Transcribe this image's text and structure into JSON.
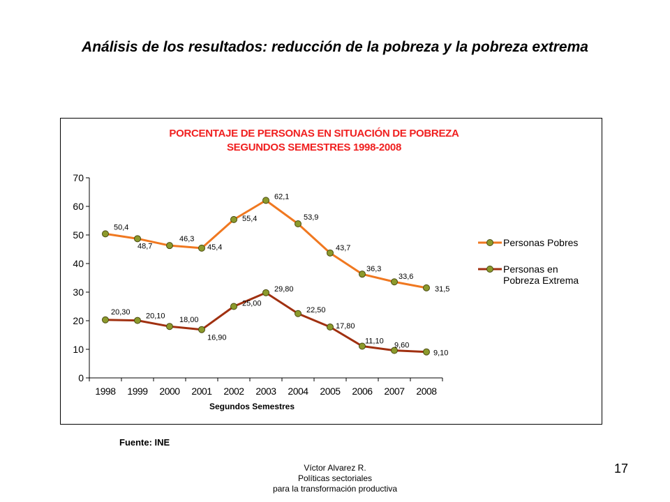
{
  "slide": {
    "title": "Análisis de los resultados: reducción de la pobreza y la pobreza extrema",
    "source": "Fuente: INE",
    "footer": [
      "Víctor Alvarez R.",
      "Políticas sectoriales",
      "para la transformación productiva"
    ],
    "page_number": "17"
  },
  "chart_data": {
    "type": "line",
    "title": [
      "PORCENTAJE DE PERSONAS EN SITUACIÓN DE POBREZA",
      "SEGUNDOS SEMESTRES 1998-2008"
    ],
    "xlabel": "Segundos Semestres",
    "ylabel": "",
    "ylim": [
      0,
      70
    ],
    "yticks": [
      "0",
      "10",
      "20",
      "30",
      "40",
      "50",
      "60",
      "70"
    ],
    "categories": [
      "1998",
      "1999",
      "2000",
      "2001",
      "2002",
      "2003",
      "2004",
      "2005",
      "2006",
      "2007",
      "2008"
    ],
    "grid": false,
    "legend_position": "right",
    "series": [
      {
        "name": "Personas Pobres",
        "legend_lines": [
          "Personas Pobres"
        ],
        "color": "#f07820",
        "values": [
          50.4,
          48.7,
          46.3,
          45.4,
          55.4,
          62.1,
          53.9,
          43.7,
          36.3,
          33.6,
          31.5
        ],
        "labels": [
          "50,4",
          "48,7",
          "46,3",
          "45,4",
          "55,4",
          "62,1",
          "53,9",
          "43,7",
          "36,3",
          "33,6",
          "31,5"
        ]
      },
      {
        "name": "Personas en Pobreza Extrema",
        "legend_lines": [
          "Personas en",
          "Pobreza Extrema"
        ],
        "color": "#a03010",
        "values": [
          20.3,
          20.1,
          18.0,
          16.9,
          25.0,
          29.8,
          22.5,
          17.8,
          11.1,
          9.6,
          9.1
        ],
        "labels": [
          "20,30",
          "20,10",
          "18,00",
          "16,90",
          "25,00",
          "29,80",
          "22,50",
          "17,80",
          "11,10",
          "9,60",
          "9,10"
        ]
      }
    ],
    "marker_color": "#8c9a2c"
  }
}
